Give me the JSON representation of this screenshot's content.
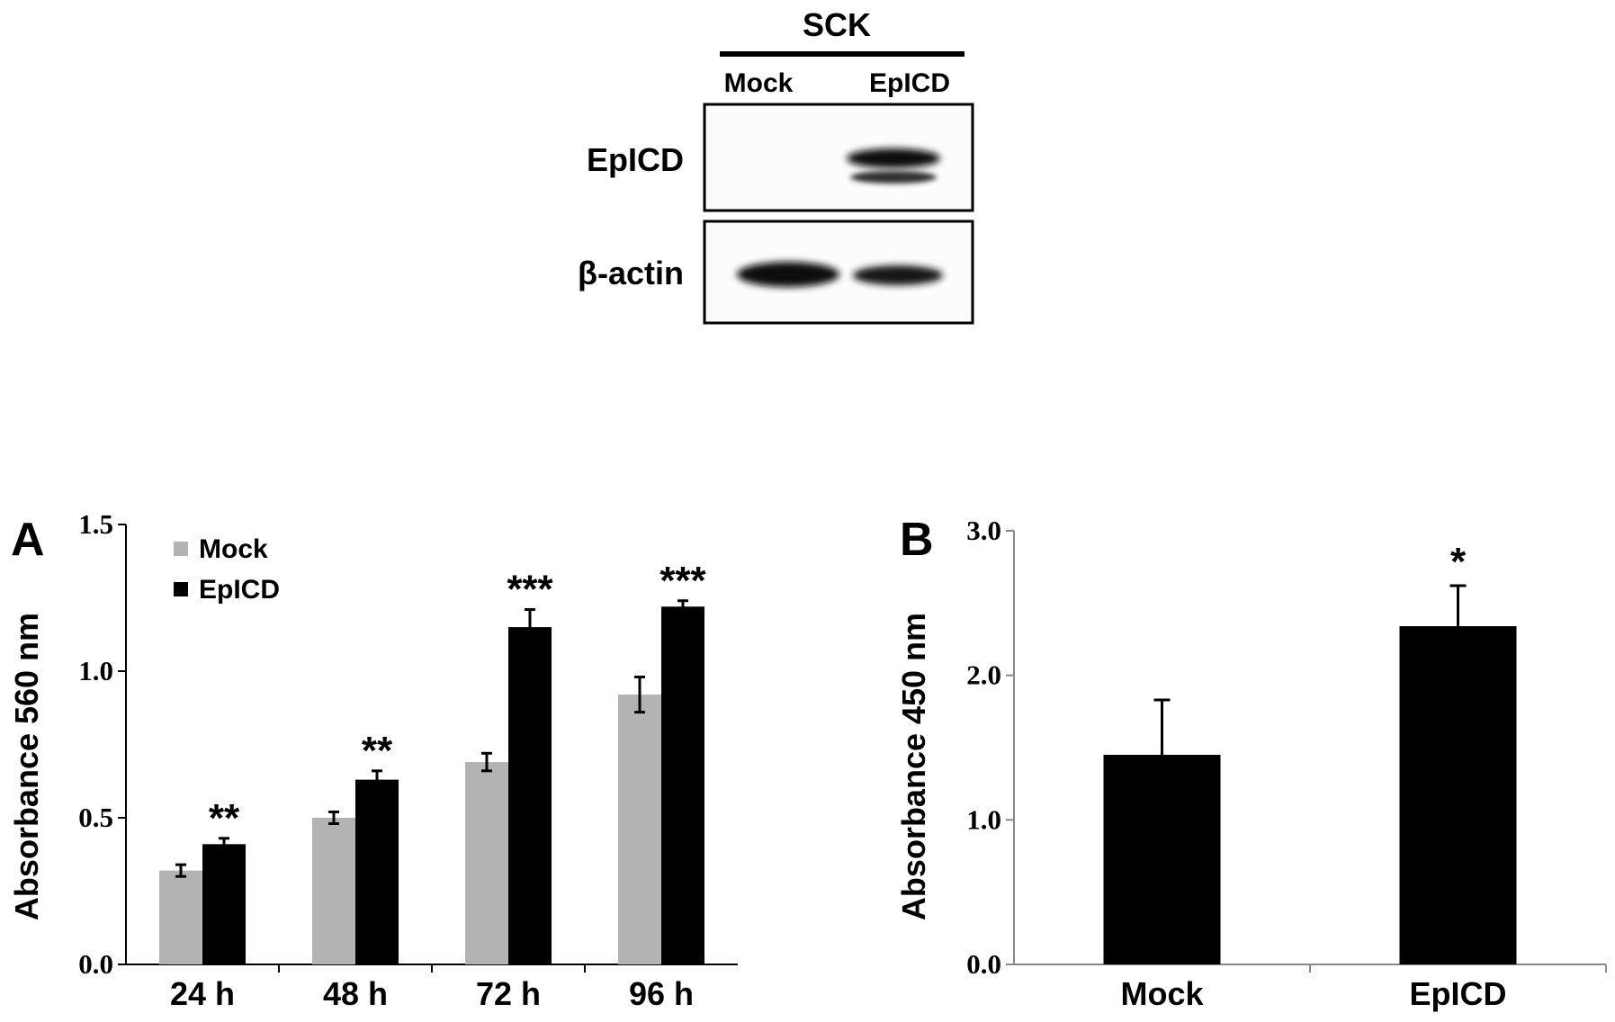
{
  "blot": {
    "title": "SCK",
    "lanes": [
      "Mock",
      "EpICD"
    ],
    "rows": [
      "EpICD",
      "β-actin"
    ]
  },
  "chart_data": [
    {
      "panel_label": "A",
      "type": "bar",
      "categories": [
        "24 h",
        "48 h",
        "72 h",
        "96 h"
      ],
      "series": [
        {
          "name": "Mock",
          "values": [
            0.32,
            0.5,
            0.69,
            0.92
          ],
          "errors": [
            0.02,
            0.02,
            0.03,
            0.06
          ],
          "color": "#b3b3b3"
        },
        {
          "name": "EpICD",
          "values": [
            0.41,
            0.63,
            1.15,
            1.22
          ],
          "errors": [
            0.02,
            0.03,
            0.06,
            0.02
          ],
          "color": "#000000"
        }
      ],
      "annotations": [
        "**",
        "**",
        "***",
        "***"
      ],
      "ylabel": "Absorbance 560 nm",
      "ylim": [
        0,
        1.5
      ],
      "yticks": [
        "0.0",
        "0.5",
        "1.0",
        "1.5"
      ],
      "legend": "top-left",
      "grid": false
    },
    {
      "panel_label": "B",
      "type": "bar",
      "categories": [
        "Mock",
        "EpICD"
      ],
      "values": [
        1.45,
        2.34
      ],
      "errors": [
        0.38,
        0.28
      ],
      "color": "#000000",
      "annotations": [
        "",
        "*"
      ],
      "ylabel": "Absorbance 450 nm",
      "ylim": [
        0,
        3
      ],
      "yticks": [
        "0.0",
        "1.0",
        "2.0",
        "3.0"
      ],
      "grid": false
    }
  ]
}
